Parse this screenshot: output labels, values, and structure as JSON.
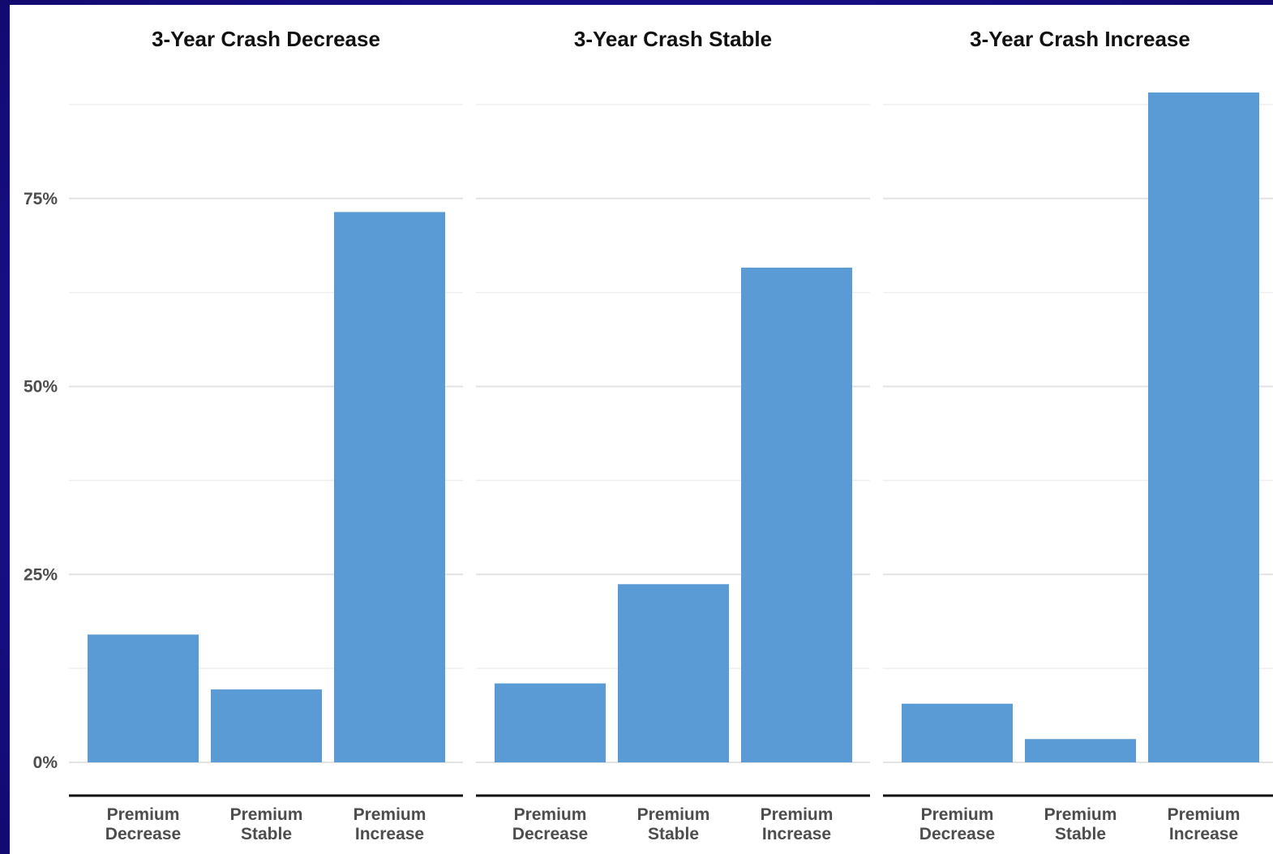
{
  "colors": {
    "bar": "#5b9bd5",
    "background_frame": "#1a1090",
    "plot_background": "#ffffff"
  },
  "chart_data": {
    "type": "bar",
    "facets": [
      {
        "title": "3-Year Crash Decrease",
        "categories": [
          [
            "Premium",
            "Decrease"
          ],
          [
            "Premium",
            "Stable"
          ],
          [
            "Premium",
            "Increase"
          ]
        ],
        "values": [
          17,
          9.7,
          73.2
        ]
      },
      {
        "title": "3-Year Crash Stable",
        "categories": [
          [
            "Premium",
            "Decrease"
          ],
          [
            "Premium",
            "Stable"
          ],
          [
            "Premium",
            "Increase"
          ]
        ],
        "values": [
          10.5,
          23.7,
          65.8
        ]
      },
      {
        "title": "3-Year Crash Increase",
        "categories": [
          [
            "Premium",
            "Decrease"
          ],
          [
            "Premium",
            "Stable"
          ],
          [
            "Premium",
            "Increase"
          ]
        ],
        "values": [
          7.8,
          3.1,
          89.1
        ]
      }
    ],
    "y_ticks": [
      {
        "value": 0,
        "label": "0%"
      },
      {
        "value": 25,
        "label": "25%"
      },
      {
        "value": 50,
        "label": "50%"
      },
      {
        "value": 75,
        "label": "75%"
      }
    ],
    "y_minor_ticks": [
      12.5,
      37.5,
      62.5,
      87.5
    ],
    "ylim": [
      0,
      100
    ],
    "grid": true,
    "legend": "none",
    "xlabel": "",
    "ylabel": ""
  }
}
